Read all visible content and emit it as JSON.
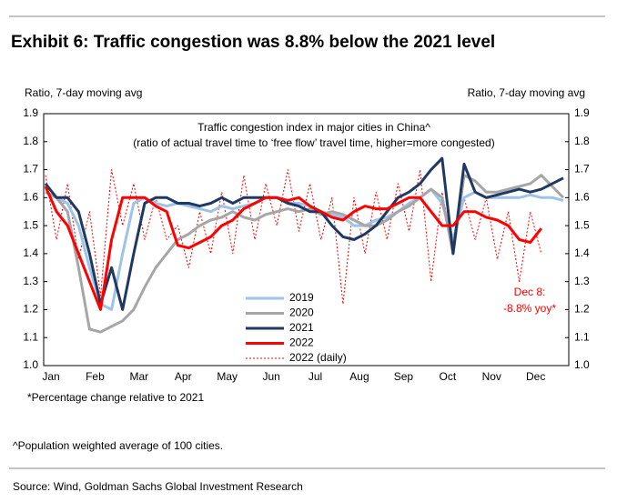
{
  "header": {
    "title": "Exhibit 6: Traffic congestion was 8.8% below the 2021 level"
  },
  "chart_data": {
    "type": "line",
    "y_label": "Ratio, 7-day moving avg",
    "y2_label": "Ratio, 7-day moving avg",
    "annotations": [
      "Traffic congestion index in major cities in China^",
      "(ratio of actual travel time to ‘free flow’ travel time, higher=more congested)",
      "Dec 8:",
      "-8.8% yoy*"
    ],
    "categories": [
      "Jan",
      null,
      null,
      null,
      "Feb",
      null,
      null,
      null,
      "Mar",
      null,
      null,
      null,
      "Apr",
      null,
      null,
      null,
      "May",
      null,
      null,
      null,
      "Jun",
      null,
      null,
      null,
      "Jul",
      null,
      null,
      null,
      "Aug",
      null,
      null,
      null,
      "Sep",
      null,
      null,
      null,
      "Oct",
      null,
      null,
      null,
      "Nov",
      null,
      null,
      null,
      "Dec",
      null,
      null,
      null
    ],
    "ylim": [
      1.0,
      1.9
    ],
    "yticks": [
      {
        "value": 1.0,
        "label": "1.0"
      },
      1.1,
      1.2,
      1.3,
      1.4,
      1.5,
      1.6,
      1.7,
      1.8,
      1.9
    ],
    "y2lim": [
      1.0,
      1.9
    ],
    "y2ticks": [
      {
        "value": 1.0,
        "label": "1.0"
      },
      1.1,
      1.2,
      1.3,
      1.4,
      1.5,
      1.6,
      1.7,
      1.8,
      1.9
    ],
    "series": [
      {
        "name": "2019",
        "color": "#9dc3e6",
        "width": 3,
        "dashed": false,
        "values": [
          1.62,
          1.6,
          1.58,
          1.5,
          1.35,
          1.22,
          1.2,
          1.4,
          1.58,
          1.6,
          1.58,
          1.57,
          1.58,
          1.57,
          1.56,
          1.55,
          1.57,
          1.56,
          1.57,
          1.58,
          1.6,
          1.6,
          1.58,
          1.58,
          1.57,
          1.55,
          1.54,
          1.53,
          1.5,
          1.5,
          1.52,
          1.53,
          1.55,
          1.58,
          1.6,
          1.63,
          1.58,
          1.45,
          1.6,
          1.62,
          1.6,
          1.6,
          1.6,
          1.6,
          1.61,
          1.6,
          1.6,
          1.59
        ]
      },
      {
        "name": "2020",
        "color": "#a6a6a6",
        "width": 3,
        "dashed": false,
        "values": [
          1.62,
          1.6,
          1.55,
          1.35,
          1.13,
          1.12,
          1.14,
          1.16,
          1.2,
          1.28,
          1.35,
          1.4,
          1.45,
          1.47,
          1.5,
          1.52,
          1.53,
          1.55,
          1.53,
          1.52,
          1.54,
          1.55,
          1.56,
          1.55,
          1.56,
          1.54,
          1.55,
          1.54,
          1.52,
          1.5,
          1.5,
          1.52,
          1.55,
          1.57,
          1.6,
          1.63,
          1.6,
          1.4,
          1.68,
          1.66,
          1.62,
          1.62,
          1.63,
          1.64,
          1.65,
          1.68,
          1.64,
          1.6
        ]
      },
      {
        "name": "2021",
        "color": "#1f3864",
        "width": 3,
        "dashed": false,
        "values": [
          1.65,
          1.6,
          1.6,
          1.55,
          1.4,
          1.22,
          1.35,
          1.2,
          1.4,
          1.58,
          1.6,
          1.6,
          1.58,
          1.58,
          1.57,
          1.58,
          1.6,
          1.58,
          1.6,
          1.6,
          1.6,
          1.6,
          1.58,
          1.57,
          1.55,
          1.55,
          1.5,
          1.46,
          1.45,
          1.47,
          1.5,
          1.55,
          1.6,
          1.62,
          1.65,
          1.7,
          1.74,
          1.4,
          1.72,
          1.62,
          1.6,
          1.61,
          1.62,
          1.63,
          1.62,
          1.63,
          1.65,
          1.67
        ]
      },
      {
        "name": "2022",
        "color": "#ff0000",
        "width": 3,
        "dashed": false,
        "values": [
          1.64,
          1.55,
          1.5,
          1.4,
          1.3,
          1.2,
          1.45,
          1.6,
          1.6,
          1.6,
          1.57,
          1.55,
          1.43,
          1.42,
          1.44,
          1.46,
          1.5,
          1.52,
          1.56,
          1.58,
          1.6,
          1.6,
          1.59,
          1.6,
          1.57,
          1.55,
          1.53,
          1.52,
          1.55,
          1.57,
          1.56,
          1.56,
          1.58,
          1.6,
          1.6,
          1.55,
          1.5,
          1.5,
          1.55,
          1.55,
          1.53,
          1.52,
          1.5,
          1.45,
          1.44,
          1.49,
          null,
          null
        ]
      },
      {
        "name": "2022 (daily)",
        "color": "#ff0000",
        "width": 1,
        "dashed": true,
        "values": [
          1.68,
          1.45,
          1.65,
          1.38,
          1.55,
          1.25,
          1.7,
          1.5,
          1.65,
          1.45,
          1.6,
          1.45,
          1.5,
          1.35,
          1.55,
          1.4,
          1.62,
          1.4,
          1.68,
          1.45,
          1.65,
          1.5,
          1.7,
          1.48,
          1.65,
          1.45,
          1.6,
          1.22,
          1.6,
          1.4,
          1.62,
          1.45,
          1.65,
          1.48,
          1.7,
          1.3,
          1.62,
          1.42,
          1.6,
          1.45,
          1.6,
          1.38,
          1.55,
          1.3,
          1.55,
          1.4,
          null,
          null
        ]
      }
    ],
    "footnote": "*Percentage change relative to 2021"
  },
  "notes": {
    "population": "^Population weighted average of 100 cities.",
    "source": "Source: Wind, Goldman Sachs Global Investment Research"
  }
}
